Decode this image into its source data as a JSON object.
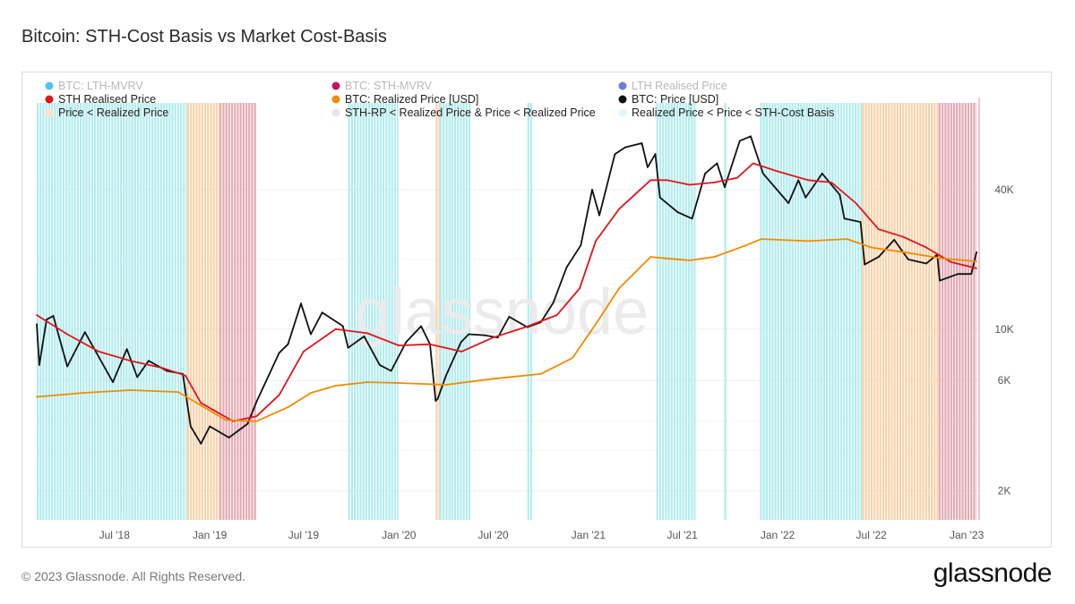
{
  "header": {
    "title": "Bitcoin: STH-Cost Basis vs Market Cost-Basis"
  },
  "footer": {
    "copyright": "© 2023 Glassnode. All Rights Reserved.",
    "brand": "glassnode"
  },
  "chart_data": {
    "type": "line",
    "title": "Bitcoin: STH-Cost Basis vs Market Cost-Basis",
    "watermark": "glassnode",
    "yscale": "log",
    "ylim": [
      1500,
      100000
    ],
    "xlim": [
      "2018-02-01",
      "2023-01-25"
    ],
    "x_ticks": [
      {
        "date": "2018-07-01",
        "label": "Jul '18"
      },
      {
        "date": "2019-01-01",
        "label": "Jan '19"
      },
      {
        "date": "2019-07-01",
        "label": "Jul '19"
      },
      {
        "date": "2020-01-01",
        "label": "Jan '20"
      },
      {
        "date": "2020-07-01",
        "label": "Jul '20"
      },
      {
        "date": "2021-01-01",
        "label": "Jan '21"
      },
      {
        "date": "2021-07-01",
        "label": "Jul '21"
      },
      {
        "date": "2022-01-01",
        "label": "Jan '22"
      },
      {
        "date": "2022-07-01",
        "label": "Jul '22"
      },
      {
        "date": "2023-01-01",
        "label": "Jan '23"
      }
    ],
    "y_ticks": [
      {
        "value": 2000,
        "label": "2K"
      },
      {
        "value": 6000,
        "label": "6K"
      },
      {
        "value": 10000,
        "label": "10K"
      },
      {
        "value": 40000,
        "label": "40K"
      }
    ],
    "legend_position": "top-left",
    "legend": [
      {
        "label": "BTC: LTH-MVRV",
        "color": "#4fc3f7",
        "faded": true
      },
      {
        "label": "BTC: STH-MVRV",
        "color": "#c2185b",
        "faded": true
      },
      {
        "label": "LTH Realised Price",
        "color": "#6a7fdb",
        "faded": true
      },
      {
        "label": "STH Realised Price",
        "color": "#e0161b",
        "faded": false
      },
      {
        "label": "BTC: Realized Price [USD]",
        "color": "#f08c00",
        "faded": false
      },
      {
        "label": "BTC: Price [USD]",
        "color": "#111111",
        "faded": false
      },
      {
        "label": "Price < Realized Price",
        "color": "#fde3c4",
        "faded": false
      },
      {
        "label": "STH-RP < Realized Price & Price < Realized Price",
        "color": "#efe0f2",
        "faded": false
      },
      {
        "label": "Realized Price < Price < STH-Cost Basis",
        "color": "#dff6fb",
        "faded": false
      }
    ],
    "series": [
      {
        "name": "BTC: Price [USD]",
        "color": "#111111",
        "points": [
          [
            "2018-02-01",
            10500
          ],
          [
            "2018-02-06",
            7000
          ],
          [
            "2018-02-20",
            11000
          ],
          [
            "2018-03-05",
            11400
          ],
          [
            "2018-04-01",
            6900
          ],
          [
            "2018-05-05",
            9700
          ],
          [
            "2018-06-28",
            5900
          ],
          [
            "2018-07-25",
            8200
          ],
          [
            "2018-08-14",
            6200
          ],
          [
            "2018-09-05",
            7300
          ],
          [
            "2018-10-10",
            6600
          ],
          [
            "2018-11-10",
            6400
          ],
          [
            "2018-11-25",
            3800
          ],
          [
            "2018-12-15",
            3200
          ],
          [
            "2019-01-01",
            3800
          ],
          [
            "2019-02-07",
            3400
          ],
          [
            "2019-03-15",
            3900
          ],
          [
            "2019-04-02",
            4900
          ],
          [
            "2019-05-15",
            7900
          ],
          [
            "2019-06-01",
            8600
          ],
          [
            "2019-06-26",
            12900
          ],
          [
            "2019-07-15",
            9500
          ],
          [
            "2019-08-06",
            11800
          ],
          [
            "2019-09-15",
            10300
          ],
          [
            "2019-09-25",
            8300
          ],
          [
            "2019-10-26",
            9300
          ],
          [
            "2019-11-25",
            7000
          ],
          [
            "2019-12-17",
            6600
          ],
          [
            "2020-01-15",
            8800
          ],
          [
            "2020-02-13",
            10300
          ],
          [
            "2020-03-01",
            8600
          ],
          [
            "2020-03-12",
            4900
          ],
          [
            "2020-03-16",
            5000
          ],
          [
            "2020-04-01",
            6300
          ],
          [
            "2020-04-30",
            8800
          ],
          [
            "2020-05-15",
            9500
          ],
          [
            "2020-06-15",
            9400
          ],
          [
            "2020-07-10",
            9200
          ],
          [
            "2020-08-01",
            11300
          ],
          [
            "2020-09-05",
            10200
          ],
          [
            "2020-10-01",
            10700
          ],
          [
            "2020-10-25",
            13000
          ],
          [
            "2020-11-20",
            18500
          ],
          [
            "2020-12-17",
            23000
          ],
          [
            "2021-01-08",
            40000
          ],
          [
            "2021-01-22",
            31000
          ],
          [
            "2021-02-21",
            57000
          ],
          [
            "2021-03-13",
            61000
          ],
          [
            "2021-04-14",
            63500
          ],
          [
            "2021-04-25",
            50000
          ],
          [
            "2021-05-10",
            57000
          ],
          [
            "2021-05-19",
            37000
          ],
          [
            "2021-06-22",
            32000
          ],
          [
            "2021-07-20",
            30000
          ],
          [
            "2021-08-14",
            47000
          ],
          [
            "2021-09-06",
            52000
          ],
          [
            "2021-09-21",
            41000
          ],
          [
            "2021-10-20",
            65000
          ],
          [
            "2021-11-10",
            68000
          ],
          [
            "2021-12-04",
            47000
          ],
          [
            "2022-01-22",
            35000
          ],
          [
            "2022-02-10",
            44000
          ],
          [
            "2022-02-24",
            37000
          ],
          [
            "2022-03-28",
            47000
          ],
          [
            "2022-05-01",
            38000
          ],
          [
            "2022-05-10",
            30000
          ],
          [
            "2022-06-10",
            29000
          ],
          [
            "2022-06-18",
            19000
          ],
          [
            "2022-07-15",
            20500
          ],
          [
            "2022-08-14",
            24300
          ],
          [
            "2022-09-10",
            20000
          ],
          [
            "2022-10-15",
            19200
          ],
          [
            "2022-11-05",
            21000
          ],
          [
            "2022-11-10",
            16200
          ],
          [
            "2022-12-15",
            17300
          ],
          [
            "2023-01-10",
            17300
          ],
          [
            "2023-01-20",
            21500
          ]
        ]
      },
      {
        "name": "STH Realised Price",
        "color": "#e0161b",
        "points": [
          [
            "2018-02-01",
            11500
          ],
          [
            "2018-04-01",
            9500
          ],
          [
            "2018-06-01",
            8000
          ],
          [
            "2018-08-01",
            7300
          ],
          [
            "2018-10-01",
            6800
          ],
          [
            "2018-11-15",
            6300
          ],
          [
            "2018-12-15",
            4800
          ],
          [
            "2019-02-15",
            4000
          ],
          [
            "2019-04-01",
            4200
          ],
          [
            "2019-05-15",
            5200
          ],
          [
            "2019-07-01",
            8000
          ],
          [
            "2019-09-01",
            10000
          ],
          [
            "2019-11-01",
            9600
          ],
          [
            "2020-01-01",
            8500
          ],
          [
            "2020-03-01",
            8600
          ],
          [
            "2020-05-01",
            8000
          ],
          [
            "2020-07-01",
            9200
          ],
          [
            "2020-09-01",
            10200
          ],
          [
            "2020-11-01",
            11500
          ],
          [
            "2020-12-15",
            15000
          ],
          [
            "2021-01-15",
            24000
          ],
          [
            "2021-03-01",
            33000
          ],
          [
            "2021-05-01",
            44000
          ],
          [
            "2021-06-01",
            44000
          ],
          [
            "2021-07-15",
            42000
          ],
          [
            "2021-09-01",
            43000
          ],
          [
            "2021-10-15",
            45000
          ],
          [
            "2021-11-15",
            52000
          ],
          [
            "2022-01-01",
            48000
          ],
          [
            "2022-03-01",
            44000
          ],
          [
            "2022-04-15",
            43000
          ],
          [
            "2022-06-01",
            35000
          ],
          [
            "2022-07-15",
            27000
          ],
          [
            "2022-09-01",
            25000
          ],
          [
            "2022-10-15",
            22500
          ],
          [
            "2022-12-01",
            19500
          ],
          [
            "2023-01-20",
            18300
          ]
        ]
      },
      {
        "name": "BTC: Realized Price [USD]",
        "color": "#f08c00",
        "points": [
          [
            "2018-02-01",
            5100
          ],
          [
            "2018-05-01",
            5300
          ],
          [
            "2018-08-01",
            5450
          ],
          [
            "2018-11-01",
            5350
          ],
          [
            "2019-02-01",
            4050
          ],
          [
            "2019-04-01",
            4000
          ],
          [
            "2019-06-01",
            4600
          ],
          [
            "2019-07-15",
            5300
          ],
          [
            "2019-09-01",
            5700
          ],
          [
            "2019-11-01",
            5900
          ],
          [
            "2020-01-01",
            5850
          ],
          [
            "2020-04-01",
            5750
          ],
          [
            "2020-07-01",
            6100
          ],
          [
            "2020-10-01",
            6400
          ],
          [
            "2020-12-01",
            7500
          ],
          [
            "2021-01-15",
            10500
          ],
          [
            "2021-03-01",
            15000
          ],
          [
            "2021-05-01",
            20500
          ],
          [
            "2021-06-01",
            20200
          ],
          [
            "2021-07-15",
            19800
          ],
          [
            "2021-09-01",
            20500
          ],
          [
            "2021-11-01",
            23000
          ],
          [
            "2021-12-01",
            24500
          ],
          [
            "2022-03-01",
            24000
          ],
          [
            "2022-05-15",
            24500
          ],
          [
            "2022-07-01",
            22500
          ],
          [
            "2022-09-01",
            21500
          ],
          [
            "2022-11-15",
            20200
          ],
          [
            "2023-01-20",
            19600
          ]
        ]
      }
    ],
    "shaded_regions": [
      {
        "start": "2018-02-01",
        "end": "2018-11-18",
        "category": "Realized Price < Price < STH-Cost Basis",
        "color": "#b3ecee"
      },
      {
        "start": "2018-11-18",
        "end": "2019-01-20",
        "category": "Price < Realized Price",
        "color": "#f8d2ac"
      },
      {
        "start": "2019-01-20",
        "end": "2019-04-01",
        "category": "STH-RP < Realized Price & Price < Realized Price",
        "color": "#e2aab3"
      },
      {
        "start": "2019-09-25",
        "end": "2019-12-31",
        "category": "Realized Price < Price < STH-Cost Basis",
        "color": "#b3ecee"
      },
      {
        "start": "2020-03-12",
        "end": "2020-03-20",
        "category": "Price < Realized Price",
        "color": "#f8d2ac"
      },
      {
        "start": "2020-03-20",
        "end": "2020-05-20",
        "category": "Realized Price < Price < STH-Cost Basis",
        "color": "#b3ecee"
      },
      {
        "start": "2020-09-05",
        "end": "2020-09-15",
        "category": "Realized Price < Price < STH-Cost Basis",
        "color": "#b3ecee"
      },
      {
        "start": "2021-05-12",
        "end": "2021-07-28",
        "category": "Realized Price < Price < STH-Cost Basis",
        "color": "#b3ecee"
      },
      {
        "start": "2021-09-20",
        "end": "2021-09-26",
        "category": "Realized Price < Price < STH-Cost Basis",
        "color": "#b3ecee"
      },
      {
        "start": "2021-11-28",
        "end": "2022-06-13",
        "category": "Realized Price < Price < STH-Cost Basis",
        "color": "#b3ecee"
      },
      {
        "start": "2022-06-13",
        "end": "2022-11-08",
        "category": "Price < Realized Price",
        "color": "#f8d2ac"
      },
      {
        "start": "2022-11-08",
        "end": "2023-01-20",
        "category": "STH-RP < Realized Price & Price < Realized Price",
        "color": "#e2aab3"
      }
    ]
  }
}
